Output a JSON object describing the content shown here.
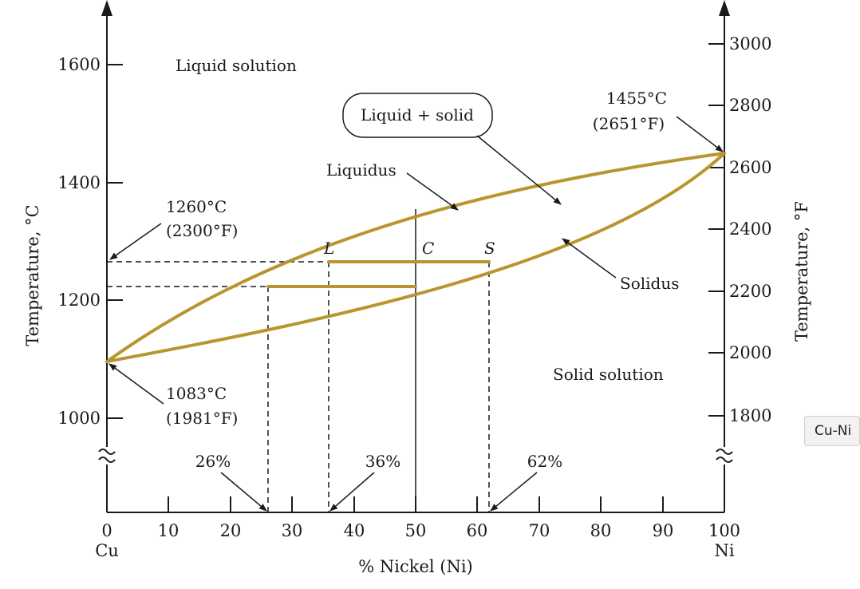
{
  "diagram": {
    "x_axis": {
      "title": "% Nickel (Ni)",
      "ticks": [
        "0",
        "10",
        "20",
        "30",
        "40",
        "50",
        "60",
        "70",
        "80",
        "90",
        "100"
      ],
      "left_end_label": "Cu",
      "right_end_label": "Ni"
    },
    "left_axis": {
      "title": "Temperature, °C",
      "ticks": [
        "1000",
        "1200",
        "1400",
        "1600"
      ]
    },
    "right_axis": {
      "title": "Temperature, °F",
      "ticks": [
        "1800",
        "2000",
        "2200",
        "2400",
        "2600",
        "2800",
        "3000"
      ]
    },
    "regions": {
      "liquid": "Liquid solution",
      "two_phase": "Liquid + solid",
      "solid": "Solid solution"
    },
    "curves": {
      "liquidus": "Liquidus",
      "solidus": "Solidus"
    },
    "melting_points": {
      "ni_c": "1455°C",
      "ni_f": "(2651°F)",
      "cu_c": "1083°C",
      "cu_f": "(1981°F)"
    },
    "temperature_marker": {
      "c": "1260°C",
      "f": "(2300°F)"
    },
    "tie_line": {
      "l": "L",
      "c": "C",
      "s": "S"
    },
    "compositions": {
      "p26": "26%",
      "p36": "36%",
      "p62": "62%"
    },
    "colors": {
      "curve": "#b8952f",
      "ink": "#1a1a1a"
    }
  },
  "tooltip": {
    "text": "Cu-Ni"
  }
}
